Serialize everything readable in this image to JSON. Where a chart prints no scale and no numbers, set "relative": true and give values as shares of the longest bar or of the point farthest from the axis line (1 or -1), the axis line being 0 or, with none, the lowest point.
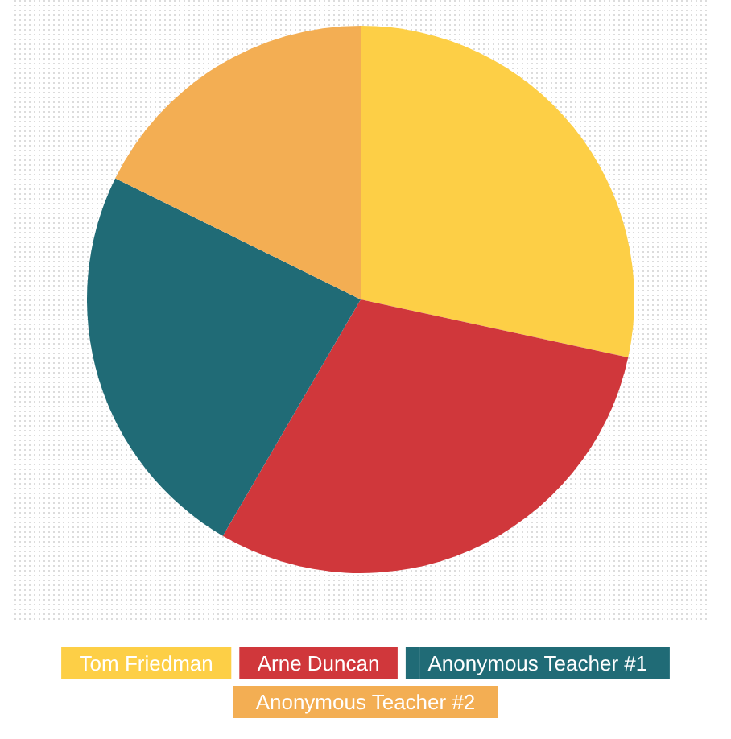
{
  "chart_data": {
    "type": "pie",
    "relative": true,
    "categories": [
      "Tom Friedman",
      "Arne Duncan",
      "Anonymous Teacher #1",
      "Anonymous Teacher #2"
    ],
    "values": [
      28.4,
      30.0,
      23.9,
      17.7
    ],
    "colors": [
      "#fdcf46",
      "#d0373b",
      "#206b76",
      "#f3ae53"
    ],
    "legend": "bottom"
  }
}
